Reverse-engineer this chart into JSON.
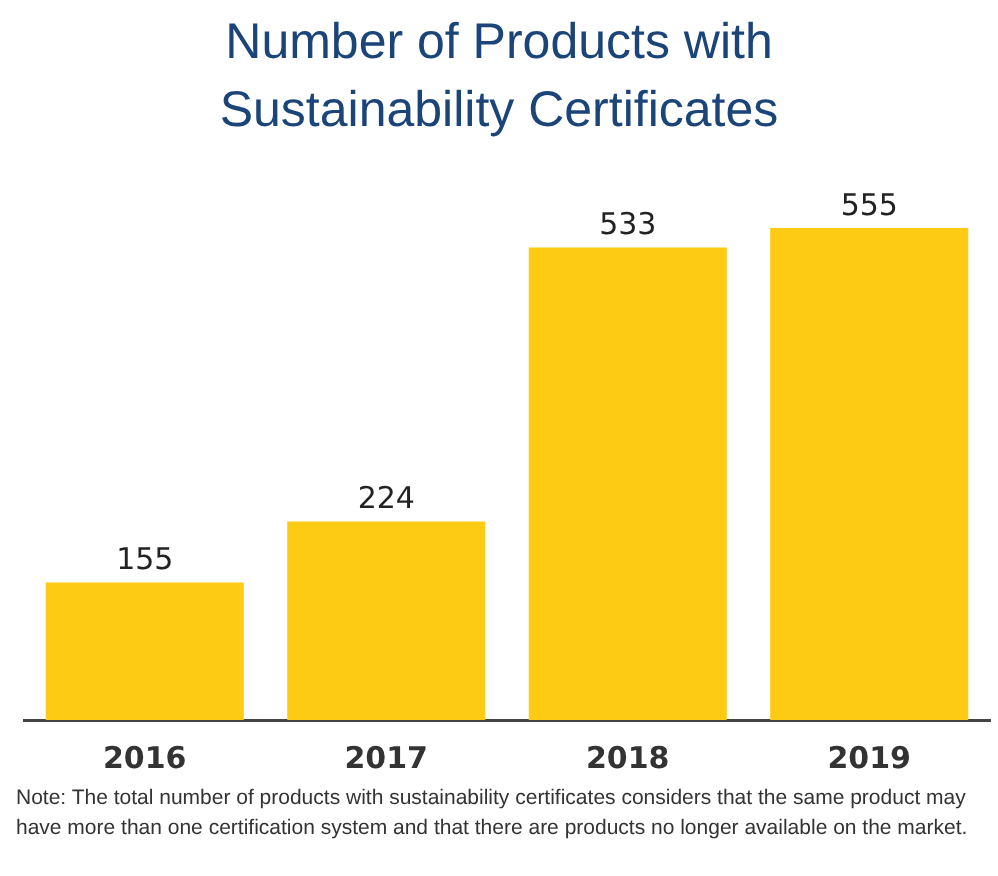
{
  "chart_data": {
    "type": "bar",
    "title": "Number of Products with Sustainability Certificates",
    "categories": [
      "2016",
      "2017",
      "2018",
      "2019"
    ],
    "values": [
      155,
      224,
      533,
      555
    ],
    "color": "#fdca14",
    "data_labels": true,
    "grid": false,
    "legend": false,
    "tick_labels": "x",
    "annotations": [
      "Note: The total number of products with sustainability certificates considers that the same product may have more than one certification system and that there are products no longer available on the market."
    ]
  }
}
